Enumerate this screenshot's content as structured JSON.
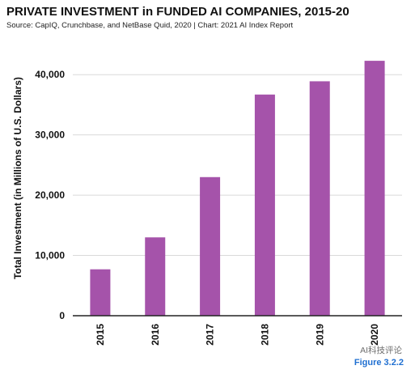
{
  "header": {
    "title": "PRIVATE INVESTMENT in FUNDED AI COMPANIES, 2015-20",
    "subtitle": "Source: CapIQ, Crunchbase, and NetBase Quid, 2020 | Chart: 2021 AI Index Report"
  },
  "footer": {
    "figure_label": "Figure 3.2.2",
    "watermark": "AI科技评论"
  },
  "colors": {
    "bar": "#a553aa",
    "grid": "#d9d9d9",
    "axis": "#222222"
  },
  "chart_data": {
    "type": "bar",
    "title": "PRIVATE INVESTMENT in FUNDED AI COMPANIES, 2015-20",
    "xlabel": "",
    "ylabel": "Total Investment (in Millions of U.S. Dollars)",
    "categories": [
      "2015",
      "2016",
      "2017",
      "2018",
      "2019",
      "2020"
    ],
    "values": [
      7700,
      13000,
      23000,
      36700,
      38900,
      42300
    ],
    "ylim": [
      0,
      45000
    ],
    "yticks": [
      0,
      10000,
      20000,
      30000,
      40000
    ],
    "ytick_labels": [
      "0",
      "10,000",
      "20,000",
      "30,000",
      "40,000"
    ],
    "grid": true,
    "legend": "none"
  }
}
